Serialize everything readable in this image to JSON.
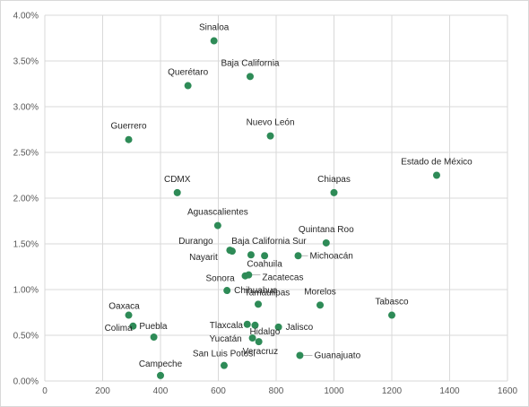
{
  "chart_data": {
    "type": "scatter",
    "title": "",
    "xlabel": "",
    "ylabel": "",
    "xlim": [
      0,
      1600
    ],
    "ylim": [
      0,
      0.04
    ],
    "x_ticks": [
      0,
      200,
      400,
      600,
      800,
      1000,
      1200,
      1400,
      1600
    ],
    "x_tick_labels": [
      "0",
      "200",
      "400",
      "600",
      "800",
      "1000",
      "1200",
      "1400",
      "1600"
    ],
    "y_ticks": [
      0,
      0.005,
      0.01,
      0.015,
      0.02,
      0.025,
      0.03,
      0.035,
      0.04
    ],
    "y_tick_labels": [
      "0.00%",
      "0.50%",
      "1.00%",
      "1.50%",
      "2.00%",
      "2.50%",
      "3.00%",
      "3.50%",
      "4.00%"
    ],
    "grid": true,
    "legend": "none",
    "marker_color": "#2e8b57",
    "points": [
      {
        "label": "Sinaloa",
        "x": 585,
        "y": 0.0372
      },
      {
        "label": "Baja California",
        "x": 710,
        "y": 0.0333
      },
      {
        "label": "Querétaro",
        "x": 495,
        "y": 0.0323
      },
      {
        "label": "Guerrero",
        "x": 290,
        "y": 0.0264
      },
      {
        "label": "Nuevo León",
        "x": 780,
        "y": 0.0268
      },
      {
        "label": "Estado de México",
        "x": 1355,
        "y": 0.0225
      },
      {
        "label": "CDMX",
        "x": 458,
        "y": 0.0206
      },
      {
        "label": "Chiapas",
        "x": 1000,
        "y": 0.0206
      },
      {
        "label": "Aguascalientes",
        "x": 598,
        "y": 0.017
      },
      {
        "label": "Quintana Roo",
        "x": 973,
        "y": 0.0151
      },
      {
        "label": "Durango",
        "x": 640,
        "y": 0.0143
      },
      {
        "label": "Baja California Sur",
        "x": 713,
        "y": 0.0138
      },
      {
        "label": "Nayarit",
        "x": 648,
        "y": 0.0142
      },
      {
        "label": "Coahuila",
        "x": 760,
        "y": 0.0137
      },
      {
        "label": "Michoacán",
        "x": 876,
        "y": 0.0137
      },
      {
        "label": "Sonora",
        "x": 693,
        "y": 0.0115
      },
      {
        "label": "Zacatecas",
        "x": 705,
        "y": 0.0116
      },
      {
        "label": "Chihuahua",
        "x": 630,
        "y": 0.0099
      },
      {
        "label": "Morelos",
        "x": 952,
        "y": 0.0083
      },
      {
        "label": "Tabasco",
        "x": 1200,
        "y": 0.0072
      },
      {
        "label": "Oaxaca",
        "x": 290,
        "y": 0.0072
      },
      {
        "label": "Puebla",
        "x": 305,
        "y": 0.006
      },
      {
        "label": "Colima",
        "x": 377,
        "y": 0.0048
      },
      {
        "label": "Tamaulipas",
        "x": 738,
        "y": 0.0084
      },
      {
        "label": "Tlaxcala",
        "x": 700,
        "y": 0.0062
      },
      {
        "label": "Jalisco",
        "x": 808,
        "y": 0.0059
      },
      {
        "label": "Yucatán",
        "x": 718,
        "y": 0.0047
      },
      {
        "label": "Hidalgo",
        "x": 727,
        "y": 0.0061
      },
      {
        "label": "Veracruz",
        "x": 740,
        "y": 0.0043
      },
      {
        "label": "Guanajuato",
        "x": 882,
        "y": 0.0028
      },
      {
        "label": "San Luis Potosí",
        "x": 620,
        "y": 0.0017
      },
      {
        "label": "Campeche",
        "x": 400,
        "y": 0.0006
      }
    ]
  }
}
